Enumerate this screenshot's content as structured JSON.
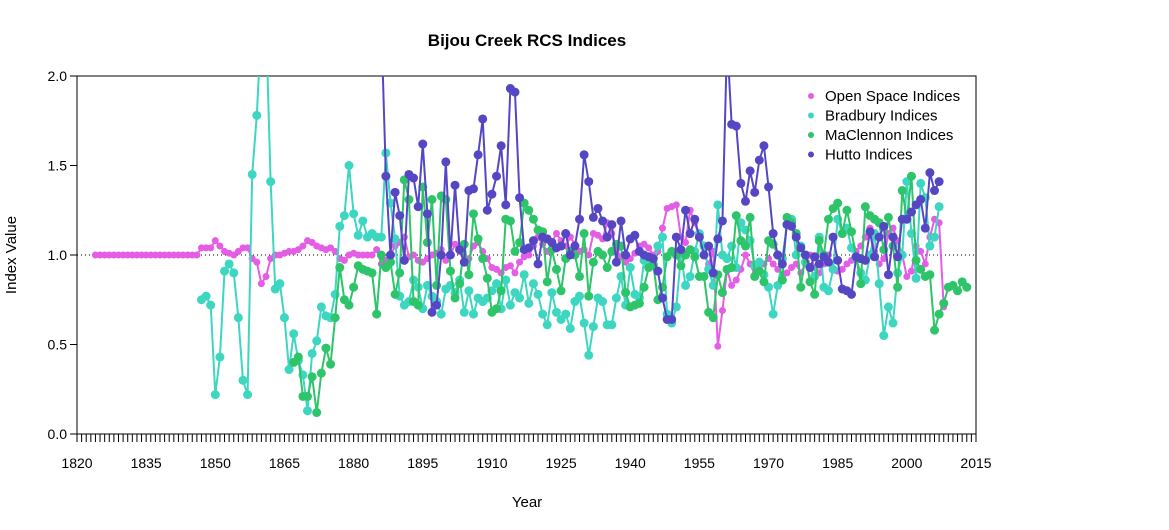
{
  "chart_data": {
    "type": "line",
    "title": "Bijou Creek RCS Indices",
    "xlabel": "Year",
    "ylabel": "Index Value",
    "xlim": [
      1820,
      2015
    ],
    "ylim": [
      0.0,
      2.0
    ],
    "x_ticks": [
      "1820",
      "1835",
      "1850",
      "1865",
      "1880",
      "1895",
      "1910",
      "1925",
      "1940",
      "1955",
      "1970",
      "1985",
      "2000",
      "2015"
    ],
    "y_ticks": [
      "0.0",
      "0.5",
      "1.0",
      "1.5",
      "2.0"
    ],
    "reference_line": 1.0,
    "legend_position": "top-right",
    "series": [
      {
        "name": "Open Space Indices",
        "color": "#e55ce5",
        "x_start": 1824,
        "values": [
          1.0,
          1.0,
          1.0,
          1.0,
          1.0,
          1.0,
          1.0,
          1.0,
          1.0,
          1.0,
          1.0,
          1.0,
          1.0,
          1.0,
          1.0,
          1.0,
          1.0,
          1.0,
          1.0,
          1.0,
          1.0,
          1.0,
          1.0,
          1.04,
          1.04,
          1.04,
          1.08,
          1.05,
          1.02,
          1.01,
          1.0,
          1.02,
          1.04,
          1.04,
          0.98,
          0.96,
          0.84,
          0.88,
          0.98,
          1.0,
          1.0,
          1.01,
          1.02,
          1.02,
          1.03,
          1.05,
          1.08,
          1.07,
          1.05,
          1.04,
          1.03,
          1.04,
          1.02,
          0.98,
          0.97,
          1.0,
          1.01,
          1.0,
          1.0,
          1.0,
          1.0,
          1.03,
          0.95,
          0.97,
          1.0,
          1.05,
          1.07,
          1.1,
          0.99,
          1.0,
          0.97,
          0.96,
          0.98,
          1.0,
          1.01,
          1.03,
          0.97,
          1.0,
          1.06,
          1.02,
          0.96,
          0.98,
          1.05,
          1.07,
          1.02,
          0.98,
          0.93,
          0.92,
          0.9,
          0.93,
          0.94,
          0.9,
          0.96,
          0.99,
          1.0,
          1.05,
          1.1,
          1.06,
          1.02,
          1.07,
          1.12,
          1.08,
          1.05,
          1.1,
          1.06,
          1.02,
          1.03,
          1.0,
          1.12,
          1.11,
          1.09,
          1.18,
          1.12,
          1.03,
          0.99,
          0.96,
          0.98,
          1.01,
          1.05,
          1.06,
          1.04,
          1.0,
          1.02,
          1.15,
          1.26,
          1.27,
          1.28,
          1.1,
          1.07,
          1.25,
          1.18,
          1.1,
          1.0,
          0.95,
          1.02,
          0.49,
          0.69,
          0.92,
          0.83,
          0.86,
          0.92,
          1.0,
          0.95,
          0.89,
          0.92,
          0.95,
          0.98,
          0.95,
          0.92,
          0.88,
          0.9,
          0.93,
          0.95,
          0.9,
          0.95,
          1.0,
          0.93,
          0.9,
          0.95,
          1.0,
          0.92,
          0.91,
          0.92,
          0.95,
          0.97,
          1.02,
          1.05,
          1.1,
          1.15,
          1.02,
          0.95,
          0.98,
          1.12,
          1.15,
          1.08,
          1.0,
          0.88,
          0.91,
          1.05,
          1.02,
          0.95,
          1.1,
          1.2,
          1.18,
          0.71
        ]
      },
      {
        "name": "Bradbury Indices",
        "color": "#3dd6c1",
        "x_start": 1847,
        "values": [
          0.75,
          0.77,
          0.72,
          0.22,
          0.43,
          0.91,
          0.95,
          0.9,
          0.65,
          0.3,
          0.22,
          1.45,
          1.78,
          2.3,
          2.3,
          1.41,
          0.81,
          0.84,
          0.65,
          0.36,
          0.56,
          0.41,
          0.33,
          0.13,
          0.45,
          0.52,
          0.71,
          0.66,
          0.65,
          0.78,
          1.16,
          1.22,
          1.5,
          1.23,
          1.11,
          1.19,
          1.1,
          1.12,
          1.1,
          1.1,
          1.57,
          1.29,
          1.09,
          0.77,
          0.72,
          0.74,
          0.86,
          0.82,
          0.7,
          0.83,
          0.77,
          0.74,
          0.67,
          0.81,
          0.83,
          0.79,
          0.86,
          0.68,
          0.8,
          0.67,
          0.76,
          0.74,
          0.76,
          0.8,
          0.84,
          0.7,
          0.86,
          0.72,
          0.79,
          0.76,
          0.89,
          0.73,
          0.84,
          0.78,
          0.67,
          0.61,
          0.79,
          0.68,
          0.64,
          0.67,
          0.59,
          0.74,
          0.77,
          0.62,
          0.44,
          0.6,
          0.76,
          0.74,
          0.61,
          0.61,
          0.76,
          0.88,
          0.72,
          0.93,
          0.78,
          0.76,
          0.97,
          0.98,
          0.94,
          1.05,
          1.1,
          0.67,
          0.62,
          0.71,
          1.0,
          0.83,
          0.88,
          1.02,
          1.12,
          1.05,
          0.92,
          0.83,
          1.28,
          1.0,
          0.98,
          1.05,
          0.93,
          1.18,
          1.14,
          1.08,
          0.94,
          0.96,
          0.89,
          0.82,
          0.67,
          0.83,
          0.98,
          1.17,
          1.2,
          1.0,
          1.05,
          0.96,
          0.93,
          0.88,
          1.1,
          0.82,
          0.8,
          0.92,
          1.2,
          1.12,
          1.15,
          1.04,
          0.98,
          0.9,
          0.86,
          1.0,
          1.12,
          0.84,
          0.55,
          0.71,
          0.62,
          0.9,
          1.0,
          1.41,
          1.12,
          0.87,
          1.4,
          1.32,
          1.05,
          1.1,
          1.27
        ]
      },
      {
        "name": "MaClennon Indices",
        "color": "#2ec46a",
        "x_start": 1867,
        "values": [
          0.4,
          0.43,
          0.21,
          0.21,
          0.32,
          0.12,
          0.34,
          0.48,
          0.39,
          0.65,
          0.93,
          0.75,
          0.72,
          0.82,
          0.94,
          0.92,
          0.91,
          0.9,
          0.67,
          1.0,
          0.93,
          0.96,
          0.78,
          0.9,
          1.42,
          1.31,
          0.74,
          0.72,
          1.38,
          1.07,
          1.31,
          0.83,
          1.33,
          1.31,
          0.91,
          0.76,
          0.84,
          1.06,
          0.89,
          1.23,
          1.09,
          0.98,
          0.87,
          0.68,
          0.7,
          0.8,
          1.2,
          1.19,
          1.02,
          1.07,
          1.29,
          1.25,
          1.2,
          1.14,
          1.13,
          0.85,
          1.03,
          0.92,
          0.8,
          0.98,
          1.02,
          1.0,
          0.88,
          1.12,
          0.77,
          0.96,
          1.02,
          1.0,
          0.93,
          1.02,
          1.06,
          1.05,
          0.79,
          0.71,
          0.72,
          0.73,
          0.82,
          0.93,
          0.95,
          0.75,
          0.82,
          0.99,
          1.02,
          1.0,
          0.94,
          1.0,
          1.03,
          0.99,
          0.88,
          0.88,
          0.68,
          0.65,
          0.89,
          0.79,
          0.92,
          0.93,
          1.22,
          1.08,
          1.05,
          1.21,
          0.88,
          0.91,
          0.85,
          1.08,
          1.06,
          1.0,
          0.86,
          1.21,
          1.18,
          1.12,
          0.82,
          1.0,
          0.85,
          0.78,
          1.08,
          1.0,
          1.2,
          1.26,
          1.29,
          1.12,
          1.25,
          1.13,
          0.99,
          0.84,
          1.27,
          1.22,
          1.2,
          1.18,
          1.03,
          1.21,
          1.05,
          0.82,
          1.36,
          1.2,
          1.44,
          0.97,
          0.92,
          0.88,
          0.89,
          0.58,
          0.67,
          0.73,
          0.82,
          0.83,
          0.8,
          0.85,
          0.82
        ]
      },
      {
        "name": "Hutto Indices",
        "color": "#5547c4",
        "x_start": 1886,
        "values": [
          2.3,
          1.44,
          1.0,
          1.35,
          1.22,
          0.97,
          1.45,
          1.43,
          1.27,
          1.62,
          1.23,
          0.68,
          0.72,
          1.0,
          1.52,
          1.0,
          1.39,
          1.03,
          0.96,
          1.36,
          1.37,
          1.56,
          1.76,
          1.25,
          1.34,
          1.44,
          1.61,
          1.28,
          1.93,
          1.91,
          1.32,
          1.03,
          1.04,
          1.08,
          0.95,
          1.1,
          1.09,
          1.07,
          1.04,
          1.05,
          1.12,
          1.0,
          1.05,
          1.2,
          1.56,
          1.41,
          1.21,
          1.26,
          1.19,
          1.1,
          1.17,
          0.96,
          1.19,
          1.0,
          1.09,
          1.11,
          1.02,
          1.0,
          0.99,
          0.98,
          0.91,
          0.76,
          0.64,
          0.64,
          1.1,
          1.03,
          1.25,
          1.12,
          1.2,
          1.1,
          1.0,
          1.05,
          0.9,
          1.09,
          1.19,
          2.2,
          1.73,
          1.72,
          1.4,
          1.3,
          1.47,
          1.35,
          1.53,
          1.61,
          1.38,
          1.12,
          1.0,
          0.95,
          1.17,
          1.16,
          1.1,
          1.04,
          1.0,
          0.93,
          0.99,
          0.95,
          0.99,
          0.96,
          1.1,
          0.97,
          0.81,
          0.8,
          0.78,
          0.99,
          0.98,
          0.97,
          1.13,
          0.99,
          1.1,
          1.16,
          0.89,
          1.1,
          0.99,
          1.2,
          1.2,
          1.24,
          1.28,
          1.31,
          1.15,
          1.46,
          1.36,
          1.41
        ]
      }
    ]
  }
}
